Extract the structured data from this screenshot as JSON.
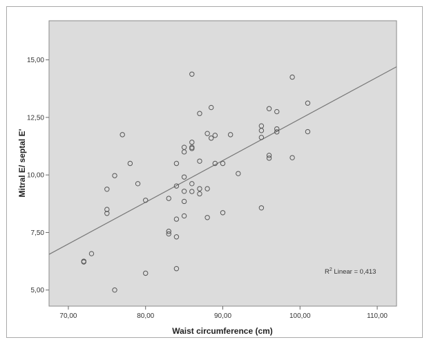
{
  "chart_data": {
    "type": "scatter",
    "xlabel": "Waist circumference (cm)",
    "ylabel": "Mitral E/ septal E'",
    "xlim": [
      67.5,
      112.5
    ],
    "ylim": [
      4.3,
      16.7
    ],
    "x_ticks": [
      70,
      80,
      90,
      100,
      110
    ],
    "x_tick_labels": [
      "70,00",
      "80,00",
      "90,00",
      "100,00",
      "110,00"
    ],
    "y_ticks": [
      5,
      7.5,
      10,
      12.5,
      15
    ],
    "y_tick_labels": [
      "5,00",
      "7,50",
      "10,00",
      "12,50",
      "15,00"
    ],
    "grid": false,
    "plot_background": "#dcdcdc",
    "point_style": "hollow circle",
    "point_color": "#555555",
    "line_color": "#777777",
    "fit_line": {
      "type": "linear",
      "x": [
        67.5,
        112.5
      ],
      "y": [
        6.55,
        14.7
      ]
    },
    "annotation": {
      "r2_prefix": "R",
      "r2_sup": "2",
      "r2_text": " Linear = 0,413",
      "position": "bottom-right"
    },
    "points": [
      {
        "x": 72,
        "y": 6.22
      },
      {
        "x": 72,
        "y": 6.25
      },
      {
        "x": 73,
        "y": 6.58
      },
      {
        "x": 75,
        "y": 8.33
      },
      {
        "x": 75,
        "y": 8.5
      },
      {
        "x": 75,
        "y": 9.38
      },
      {
        "x": 76,
        "y": 9.97
      },
      {
        "x": 76,
        "y": 5.0
      },
      {
        "x": 77,
        "y": 11.75
      },
      {
        "x": 78,
        "y": 10.5
      },
      {
        "x": 79,
        "y": 9.62
      },
      {
        "x": 80,
        "y": 8.9
      },
      {
        "x": 80,
        "y": 5.73
      },
      {
        "x": 83,
        "y": 8.98
      },
      {
        "x": 83,
        "y": 7.55
      },
      {
        "x": 83,
        "y": 7.44
      },
      {
        "x": 84,
        "y": 10.5
      },
      {
        "x": 84,
        "y": 9.52
      },
      {
        "x": 84,
        "y": 8.08
      },
      {
        "x": 84,
        "y": 7.31
      },
      {
        "x": 84,
        "y": 5.93
      },
      {
        "x": 85,
        "y": 11.2
      },
      {
        "x": 85,
        "y": 11.0
      },
      {
        "x": 85,
        "y": 9.91
      },
      {
        "x": 85,
        "y": 9.29
      },
      {
        "x": 85,
        "y": 8.85
      },
      {
        "x": 85,
        "y": 8.22
      },
      {
        "x": 86,
        "y": 14.38
      },
      {
        "x": 86,
        "y": 11.42
      },
      {
        "x": 86,
        "y": 11.2
      },
      {
        "x": 86,
        "y": 11.15
      },
      {
        "x": 86,
        "y": 9.62
      },
      {
        "x": 86,
        "y": 9.28
      },
      {
        "x": 87,
        "y": 12.67
      },
      {
        "x": 87,
        "y": 10.6
      },
      {
        "x": 87,
        "y": 9.4
      },
      {
        "x": 87,
        "y": 9.18
      },
      {
        "x": 88,
        "y": 11.8
      },
      {
        "x": 88,
        "y": 9.4
      },
      {
        "x": 88,
        "y": 8.15
      },
      {
        "x": 88.5,
        "y": 12.93
      },
      {
        "x": 88.5,
        "y": 11.6
      },
      {
        "x": 89,
        "y": 11.72
      },
      {
        "x": 89,
        "y": 10.5
      },
      {
        "x": 90,
        "y": 10.5
      },
      {
        "x": 90,
        "y": 8.36
      },
      {
        "x": 91,
        "y": 11.75
      },
      {
        "x": 92,
        "y": 10.06
      },
      {
        "x": 95,
        "y": 12.13
      },
      {
        "x": 95,
        "y": 11.93
      },
      {
        "x": 95,
        "y": 11.63
      },
      {
        "x": 95,
        "y": 8.57
      },
      {
        "x": 96,
        "y": 12.88
      },
      {
        "x": 96,
        "y": 10.85
      },
      {
        "x": 96,
        "y": 10.73
      },
      {
        "x": 97,
        "y": 12.75
      },
      {
        "x": 97,
        "y": 12.0
      },
      {
        "x": 97,
        "y": 11.87
      },
      {
        "x": 99,
        "y": 14.25
      },
      {
        "x": 99,
        "y": 10.75
      },
      {
        "x": 101,
        "y": 13.12
      },
      {
        "x": 101,
        "y": 11.88
      }
    ]
  }
}
